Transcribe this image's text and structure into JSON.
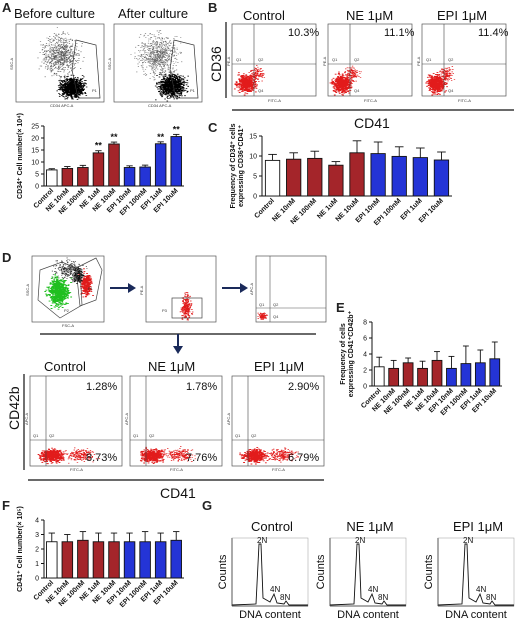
{
  "panels": {
    "A": "A",
    "B": "B",
    "C": "C",
    "D": "D",
    "E": "E",
    "F": "F",
    "G": "G"
  },
  "panel_a": {
    "before": "Before culture",
    "after": "After culture",
    "ssc": "SSC-A",
    "cd34": "CD34 APC-A",
    "gate": "P1"
  },
  "panel_b": {
    "titles": [
      "Control",
      "NE 1μM",
      "EPI 1μM"
    ],
    "values": [
      "10.3%",
      "11.1%",
      "11.4%"
    ],
    "ylabel": "CD36",
    "xlabel": "CD41",
    "plot_y": "PE-A",
    "plot_x": "FITC-A",
    "q1": "Q1",
    "q2": "Q2",
    "q4": "Q4"
  },
  "panel_d": {
    "titles": [
      "Control",
      "NE 1μM",
      "EPI 1μM"
    ],
    "upper": [
      "1.28%",
      "1.78%",
      "2.90%"
    ],
    "lower": [
      "8.73%",
      "7.76%",
      "6.79%"
    ],
    "ylabel": "CD42b",
    "xlabel": "CD41",
    "plot_y": "APC-A",
    "plot_x": "FITC-A",
    "ssc": "SSC-A",
    "fsc": "FSC-A",
    "pe": "PE-A",
    "apc": "APC-A",
    "p1": "P1",
    "p2": "P2",
    "p3": "P3",
    "q1": "Q1",
    "q2": "Q2",
    "q4": "Q4"
  },
  "panel_g": {
    "titles": [
      "Control",
      "NE 1μM",
      "EPI 1μM"
    ],
    "ylabel": "Counts",
    "xlabel": "DNA content",
    "peaks": [
      "2N",
      "4N",
      "8N"
    ]
  },
  "chart_data": [
    {
      "id": "A",
      "type": "bar",
      "categories": [
        "Control",
        "NE 10nM",
        "NE 100nM",
        "NE 1uM",
        "NE 10uM",
        "EPI 10nM",
        "EPI 100nM",
        "EPI 1uM",
        "EPI 10uM"
      ],
      "values": [
        6.7,
        7.3,
        7.7,
        13.8,
        17.5,
        7.7,
        7.9,
        17.6,
        20.6
      ],
      "errors": [
        0.5,
        0.8,
        0.9,
        0.9,
        0.8,
        0.7,
        0.8,
        0.8,
        0.9
      ],
      "significance": [
        "",
        "",
        "",
        "**",
        "**",
        "",
        "",
        "**",
        "**"
      ],
      "colors": [
        "#ffffff",
        "#a4252a",
        "#a4252a",
        "#a4252a",
        "#a4252a",
        "#2434d6",
        "#2434d6",
        "#2434d6",
        "#2434d6"
      ],
      "ylabel": "CD34⁺ Cell number(× 10⁴)",
      "ylim": [
        0,
        25
      ],
      "yticks": [
        "0",
        "5",
        "10",
        "15",
        "20",
        "25"
      ]
    },
    {
      "id": "C",
      "type": "bar",
      "categories": [
        "Control",
        "NE 10nM",
        "NE 100nM",
        "NE 1uM",
        "NE 10uM",
        "EPI 10nM",
        "EPI 100nM",
        "EPI 1uM",
        "EPI 10uM"
      ],
      "values": [
        8.9,
        9.2,
        9.4,
        7.7,
        10.8,
        10.6,
        9.9,
        9.6,
        9.0
      ],
      "errors": [
        1.5,
        1.6,
        1.8,
        0.9,
        3.0,
        2.9,
        2.4,
        2.4,
        2.0
      ],
      "colors": [
        "#ffffff",
        "#a4252a",
        "#a4252a",
        "#a4252a",
        "#a4252a",
        "#2434d6",
        "#2434d6",
        "#2434d6",
        "#2434d6"
      ],
      "ylabel": "Frequency of CD34⁺ cells expressing CD36⁺CD41⁺",
      "ylim": [
        0,
        15
      ],
      "yticks": [
        "0",
        "5",
        "10",
        "15"
      ]
    },
    {
      "id": "E",
      "type": "bar",
      "categories": [
        "Control",
        "NE 10nM",
        "NE 100nM",
        "NE 1uM",
        "NE 10uM",
        "EPI 10nM",
        "EPI 100nM",
        "EPI 1uM",
        "EPI 10uM"
      ],
      "values": [
        2.4,
        2.2,
        2.9,
        2.2,
        3.2,
        2.2,
        2.8,
        2.9,
        3.4
      ],
      "errors": [
        1.2,
        1.0,
        0.6,
        0.9,
        1.1,
        1.5,
        2.2,
        1.6,
        2.1
      ],
      "colors": [
        "#ffffff",
        "#a4252a",
        "#a4252a",
        "#a4252a",
        "#a4252a",
        "#2434d6",
        "#2434d6",
        "#2434d6",
        "#2434d6"
      ],
      "ylabel": "Frequency of cells expressing CD41⁺CD42b⁺",
      "ylim": [
        0,
        8
      ],
      "yticks": [
        "0",
        "2",
        "4",
        "6",
        "8"
      ]
    },
    {
      "id": "F",
      "type": "bar",
      "categories": [
        "Control",
        "NE 10nM",
        "NE 100nM",
        "NE 1uM",
        "NE 10uM",
        "EPI 10nM",
        "EPI 100nM",
        "EPI 1uM",
        "EPI 10uM"
      ],
      "values": [
        2.5,
        2.5,
        2.6,
        2.5,
        2.5,
        2.5,
        2.5,
        2.5,
        2.6
      ],
      "errors": [
        0.6,
        0.5,
        0.6,
        0.6,
        0.6,
        0.6,
        0.7,
        0.6,
        0.6
      ],
      "colors": [
        "#ffffff",
        "#a4252a",
        "#a4252a",
        "#a4252a",
        "#a4252a",
        "#2434d6",
        "#2434d6",
        "#2434d6",
        "#2434d6"
      ],
      "ylabel": "CD41⁺ Cell number(× 10⁵)",
      "ylim": [
        0,
        4
      ],
      "yticks": [
        "0",
        "1",
        "2",
        "3",
        "4"
      ]
    }
  ]
}
